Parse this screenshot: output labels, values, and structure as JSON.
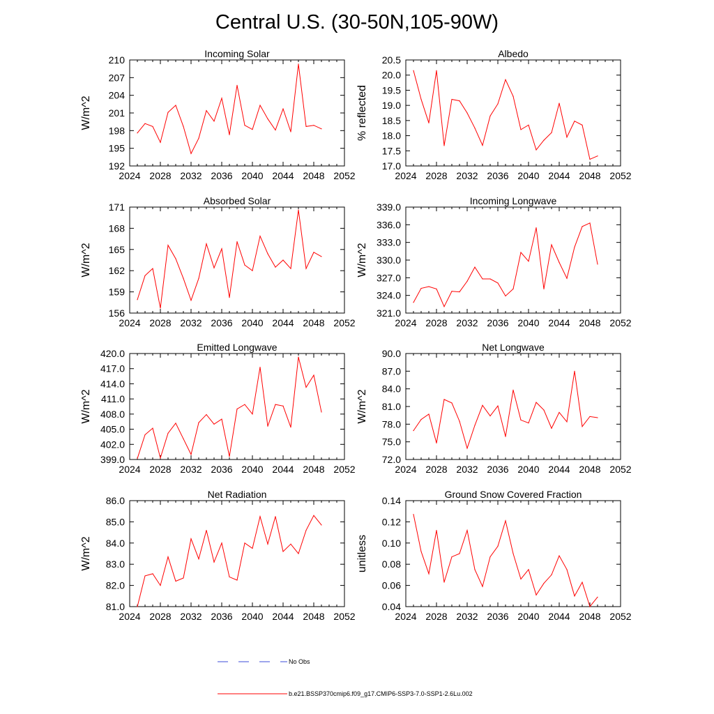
{
  "title": "Central U.S. (30-50N,105-90W)",
  "colors": {
    "series": "#ff0000",
    "noobs": "#3b4bd8",
    "axis": "#000000"
  },
  "legend": {
    "noobs_label": "No Obs",
    "series_label": "b.e21.BSSP370cmip6.f09_g17.CMIP6-SSP3-7.0-SSP1-2.6Lu.002"
  },
  "chart_data": [
    {
      "type": "line",
      "title": "Incoming Solar",
      "xlabel": "",
      "ylabel": "W/m^2",
      "xlim": [
        2024,
        2052
      ],
      "ylim": [
        192,
        210
      ],
      "xticks": [
        2024,
        2028,
        2032,
        2036,
        2040,
        2044,
        2048,
        2052
      ],
      "xtick_labels": [
        "2024",
        "2028",
        "2032",
        "2036",
        "2040",
        "2044",
        "2048",
        "2052"
      ],
      "yticks": [
        192,
        195,
        198,
        201,
        204,
        207,
        210
      ],
      "ytick_labels": [
        "192",
        "195",
        "198",
        "201",
        "204",
        "207",
        "210"
      ],
      "x": [
        2025,
        2026,
        2027,
        2028,
        2029,
        2030,
        2031,
        2032,
        2033,
        2034,
        2035,
        2036,
        2037,
        2038,
        2039,
        2040,
        2041,
        2042,
        2043,
        2044,
        2045,
        2046,
        2047,
        2048,
        2049
      ],
      "series": [
        {
          "values": [
            197.6,
            199.2,
            198.7,
            196.0,
            201.1,
            202.3,
            198.7,
            194.1,
            196.7,
            201.4,
            199.6,
            203.5,
            197.3,
            205.7,
            198.9,
            198.2,
            202.3,
            200.0,
            198.1,
            201.7,
            197.8,
            209.3,
            198.7,
            198.9,
            198.3
          ]
        }
      ]
    },
    {
      "type": "line",
      "title": "Albedo",
      "xlabel": "",
      "ylabel": "% reflected",
      "xlim": [
        2024,
        2052
      ],
      "ylim": [
        17.0,
        20.5
      ],
      "xticks": [
        2024,
        2028,
        2032,
        2036,
        2040,
        2044,
        2048,
        2052
      ],
      "xtick_labels": [
        "2024",
        "2028",
        "2032",
        "2036",
        "2040",
        "2044",
        "2048",
        "2052"
      ],
      "yticks": [
        17.0,
        17.5,
        18.0,
        18.5,
        19.0,
        19.5,
        20.0,
        20.5
      ],
      "ytick_labels": [
        "17.0",
        "17.5",
        "18.0",
        "18.5",
        "19.0",
        "19.5",
        "20.0",
        "20.5"
      ],
      "x": [
        2025,
        2026,
        2027,
        2028,
        2029,
        2030,
        2031,
        2032,
        2033,
        2034,
        2035,
        2036,
        2037,
        2038,
        2039,
        2040,
        2041,
        2042,
        2043,
        2044,
        2045,
        2046,
        2047,
        2048,
        2049
      ],
      "series": [
        {
          "values": [
            20.15,
            19.2,
            18.42,
            20.15,
            17.67,
            19.2,
            19.15,
            18.75,
            18.25,
            17.68,
            18.65,
            19.05,
            19.85,
            19.3,
            18.2,
            18.35,
            17.53,
            17.85,
            18.1,
            19.07,
            17.95,
            18.48,
            18.35,
            17.22,
            17.33
          ]
        }
      ]
    },
    {
      "type": "line",
      "title": "Absorbed Solar",
      "xlabel": "",
      "ylabel": "W/m^2",
      "xlim": [
        2024,
        2052
      ],
      "ylim": [
        156,
        171
      ],
      "xticks": [
        2024,
        2028,
        2032,
        2036,
        2040,
        2044,
        2048,
        2052
      ],
      "xtick_labels": [
        "2024",
        "2028",
        "2032",
        "2036",
        "2040",
        "2044",
        "2048",
        "2052"
      ],
      "yticks": [
        156,
        159,
        162,
        165,
        168,
        171
      ],
      "ytick_labels": [
        "156",
        "159",
        "162",
        "165",
        "168",
        "171"
      ],
      "x": [
        2025,
        2026,
        2027,
        2028,
        2029,
        2030,
        2031,
        2032,
        2033,
        2034,
        2035,
        2036,
        2037,
        2038,
        2039,
        2040,
        2041,
        2042,
        2043,
        2044,
        2045,
        2046,
        2047,
        2048,
        2049
      ],
      "series": [
        {
          "values": [
            157.9,
            161.3,
            162.3,
            156.7,
            165.6,
            163.7,
            160.9,
            157.8,
            160.9,
            165.8,
            162.4,
            165.1,
            158.2,
            166.1,
            162.8,
            162.0,
            166.9,
            164.4,
            162.5,
            163.5,
            162.3,
            170.6,
            162.3,
            164.6,
            164.0
          ]
        }
      ]
    },
    {
      "type": "line",
      "title": "Incoming Longwave",
      "xlabel": "",
      "ylabel": "W/m^2",
      "xlim": [
        2024,
        2052
      ],
      "ylim": [
        321.0,
        339.0
      ],
      "xticks": [
        2024,
        2028,
        2032,
        2036,
        2040,
        2044,
        2048,
        2052
      ],
      "xtick_labels": [
        "2024",
        "2028",
        "2032",
        "2036",
        "2040",
        "2044",
        "2048",
        "2052"
      ],
      "yticks": [
        321.0,
        324.0,
        327.0,
        330.0,
        333.0,
        336.0,
        339.0
      ],
      "ytick_labels": [
        "321.0",
        "324.0",
        "327.0",
        "330.0",
        "333.0",
        "336.0",
        "339.0"
      ],
      "x": [
        2025,
        2026,
        2027,
        2028,
        2029,
        2030,
        2031,
        2032,
        2033,
        2034,
        2035,
        2036,
        2037,
        2038,
        2039,
        2040,
        2041,
        2042,
        2043,
        2044,
        2045,
        2046,
        2047,
        2048,
        2049
      ],
      "series": [
        {
          "values": [
            322.8,
            325.2,
            325.5,
            325.1,
            322.1,
            324.7,
            324.6,
            326.4,
            328.8,
            326.8,
            326.8,
            326.1,
            323.9,
            325.1,
            331.3,
            329.8,
            335.5,
            325.1,
            332.6,
            329.6,
            326.9,
            332.2,
            335.7,
            336.3,
            329.3
          ]
        }
      ]
    },
    {
      "type": "line",
      "title": "Emitted Longwave",
      "xlabel": "",
      "ylabel": "W/m^2",
      "xlim": [
        2024,
        2052
      ],
      "ylim": [
        399.0,
        420.0
      ],
      "xticks": [
        2024,
        2028,
        2032,
        2036,
        2040,
        2044,
        2048,
        2052
      ],
      "xtick_labels": [
        "2024",
        "2028",
        "2032",
        "2036",
        "2040",
        "2044",
        "2048",
        "2052"
      ],
      "yticks": [
        399.0,
        402.0,
        405.0,
        408.0,
        411.0,
        414.0,
        417.0,
        420.0
      ],
      "ytick_labels": [
        "399.0",
        "402.0",
        "405.0",
        "408.0",
        "411.0",
        "414.0",
        "417.0",
        "420.0"
      ],
      "x": [
        2025,
        2026,
        2027,
        2028,
        2029,
        2030,
        2031,
        2032,
        2033,
        2034,
        2035,
        2036,
        2037,
        2038,
        2039,
        2040,
        2041,
        2042,
        2043,
        2044,
        2045,
        2046,
        2047,
        2048,
        2049
      ],
      "series": [
        {
          "values": [
            399.2,
            403.9,
            405.2,
            399.3,
            404.2,
            406.2,
            403.1,
            400.0,
            406.3,
            407.9,
            406.0,
            407.0,
            399.6,
            409.0,
            409.9,
            408.0,
            417.3,
            405.6,
            409.9,
            409.6,
            405.4,
            419.3,
            413.3,
            415.7,
            408.4
          ]
        }
      ]
    },
    {
      "type": "line",
      "title": "Net Longwave",
      "xlabel": "",
      "ylabel": "W/m^2",
      "xlim": [
        2024,
        2052
      ],
      "ylim": [
        72.0,
        90.0
      ],
      "xticks": [
        2024,
        2028,
        2032,
        2036,
        2040,
        2044,
        2048,
        2052
      ],
      "xtick_labels": [
        "2024",
        "2028",
        "2032",
        "2036",
        "2040",
        "2044",
        "2048",
        "2052"
      ],
      "yticks": [
        72.0,
        75.0,
        78.0,
        81.0,
        84.0,
        87.0,
        90.0
      ],
      "ytick_labels": [
        "72.0",
        "75.0",
        "78.0",
        "81.0",
        "84.0",
        "87.0",
        "90.0"
      ],
      "x": [
        2025,
        2026,
        2027,
        2028,
        2029,
        2030,
        2031,
        2032,
        2033,
        2034,
        2035,
        2036,
        2037,
        2038,
        2039,
        2040,
        2041,
        2042,
        2043,
        2044,
        2045,
        2046,
        2047,
        2048,
        2049
      ],
      "series": [
        {
          "values": [
            76.9,
            78.8,
            79.7,
            74.8,
            82.2,
            81.6,
            78.5,
            73.9,
            77.8,
            81.2,
            79.4,
            81.1,
            75.9,
            83.8,
            78.7,
            78.2,
            81.7,
            80.4,
            77.3,
            80.0,
            78.4,
            87.0,
            77.6,
            79.3,
            79.1
          ]
        }
      ]
    },
    {
      "type": "line",
      "title": "Net Radiation",
      "xlabel": "",
      "ylabel": "W/m^2",
      "xlim": [
        2024,
        2052
      ],
      "ylim": [
        81.0,
        86.0
      ],
      "xticks": [
        2024,
        2028,
        2032,
        2036,
        2040,
        2044,
        2048,
        2052
      ],
      "xtick_labels": [
        "2024",
        "2028",
        "2032",
        "2036",
        "2040",
        "2044",
        "2048",
        "2052"
      ],
      "yticks": [
        81.0,
        82.0,
        83.0,
        84.0,
        85.0,
        86.0
      ],
      "ytick_labels": [
        "81.0",
        "82.0",
        "83.0",
        "84.0",
        "85.0",
        "86.0"
      ],
      "x": [
        2025,
        2026,
        2027,
        2028,
        2029,
        2030,
        2031,
        2032,
        2033,
        2034,
        2035,
        2036,
        2037,
        2038,
        2039,
        2040,
        2041,
        2042,
        2043,
        2044,
        2045,
        2046,
        2047,
        2048,
        2049
      ],
      "series": [
        {
          "values": [
            81.0,
            82.45,
            82.55,
            82.0,
            83.35,
            82.2,
            82.35,
            84.2,
            83.25,
            84.6,
            83.1,
            84.0,
            82.4,
            82.25,
            84.0,
            83.75,
            85.25,
            83.95,
            85.25,
            83.6,
            83.95,
            83.5,
            84.6,
            85.3,
            84.85
          ]
        }
      ]
    },
    {
      "type": "line",
      "title": "Ground Snow Covered Fraction",
      "xlabel": "",
      "ylabel": "unitless",
      "xlim": [
        2024,
        2052
      ],
      "ylim": [
        0.04,
        0.14
      ],
      "xticks": [
        2024,
        2028,
        2032,
        2036,
        2040,
        2044,
        2048,
        2052
      ],
      "xtick_labels": [
        "2024",
        "2028",
        "2032",
        "2036",
        "2040",
        "2044",
        "2048",
        "2052"
      ],
      "yticks": [
        0.04,
        0.06,
        0.08,
        0.1,
        0.12,
        0.14
      ],
      "ytick_labels": [
        "0.04",
        "0.06",
        "0.08",
        "0.10",
        "0.12",
        "0.14"
      ],
      "x": [
        2025,
        2026,
        2027,
        2028,
        2029,
        2030,
        2031,
        2032,
        2033,
        2034,
        2035,
        2036,
        2037,
        2038,
        2039,
        2040,
        2041,
        2042,
        2043,
        2044,
        2045,
        2046,
        2047,
        2048,
        2049
      ],
      "series": [
        {
          "values": [
            0.127,
            0.092,
            0.071,
            0.112,
            0.063,
            0.087,
            0.09,
            0.112,
            0.075,
            0.059,
            0.087,
            0.097,
            0.121,
            0.09,
            0.066,
            0.075,
            0.051,
            0.062,
            0.07,
            0.088,
            0.075,
            0.05,
            0.063,
            0.04,
            0.049
          ]
        }
      ]
    }
  ]
}
